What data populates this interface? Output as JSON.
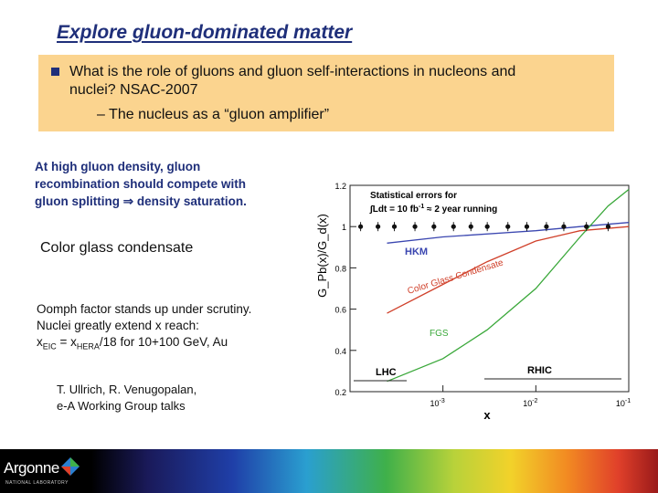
{
  "title": "Explore gluon-dominated matter",
  "bullet": {
    "line1": "What is the role of gluons and gluon self-interactions in nucleons and",
    "line2": "nuclei?  NSAC-2007",
    "sub": "–  The nucleus as a “gluon amplifier”"
  },
  "lead": {
    "line1": "At high gluon density, gluon",
    "line2": "recombination should compete with",
    "line3_a": "gluon splitting",
    "line3_b": "density saturation."
  },
  "cgc": "Color glass condensate",
  "oomph": {
    "line1": "Oomph factor stands up under scrutiny.",
    "line2": "Nuclei greatly extend x reach:",
    "x_eic": "x",
    "x_eic_sub": "EIC",
    "eq": " = x",
    "x_hera_sub": "HERA",
    "rest": "/18  for 10+100 GeV,  Au"
  },
  "refs": {
    "line1": "T. Ullrich, R. Venugopalan,",
    "line2": "e-A Working Group talks"
  },
  "chart_data": {
    "type": "line",
    "xlabel": "x",
    "ylabel": "G_Pb(x)/G_d(x)",
    "xscale": "log",
    "xlim": [
      0.0001,
      0.1
    ],
    "ylim": [
      0.2,
      1.2
    ],
    "yticks": [
      0.2,
      0.4,
      0.6,
      0.8,
      1,
      1.2
    ],
    "ytick_labels": [
      "0.2",
      "0.4",
      "0.6",
      "0.8",
      "1",
      "1.2"
    ],
    "xtick_labels": [
      "10",
      "10",
      "10"
    ],
    "xtick_exps": [
      "-3",
      "-2",
      "-1"
    ],
    "annotations": {
      "stat_title": "Statistical errors for",
      "lumi_a": "Ldt = 10 fb",
      "lumi_exp": "-1",
      "lumi_b": " ≈ 2 year running",
      "hkm": "HKM",
      "cgc": "Color Glass Condensate",
      "fgs": "FGS",
      "lhc": "LHC",
      "rhic": "RHIC"
    },
    "series": [
      {
        "name": "HKM",
        "color": "#3a46b0",
        "x": [
          0.00025,
          0.001,
          0.01,
          0.03,
          0.1
        ],
        "y": [
          0.92,
          0.95,
          0.98,
          1.0,
          1.02
        ]
      },
      {
        "name": "Color Glass Condensate",
        "color": "#d0402a",
        "x": [
          0.00025,
          0.001,
          0.003,
          0.01,
          0.03,
          0.1
        ],
        "y": [
          0.58,
          0.72,
          0.83,
          0.93,
          0.98,
          1.0
        ]
      },
      {
        "name": "FGS",
        "color": "#3aa83a",
        "x": [
          0.00025,
          0.001,
          0.003,
          0.01,
          0.03,
          0.06,
          0.1
        ],
        "y": [
          0.25,
          0.36,
          0.5,
          0.7,
          0.95,
          1.1,
          1.18
        ]
      }
    ],
    "points": {
      "x": [
        0.00013,
        0.0002,
        0.0003,
        0.0005,
        0.0008,
        0.0013,
        0.002,
        0.003,
        0.005,
        0.008,
        0.013,
        0.02,
        0.035,
        0.06
      ],
      "y": [
        1,
        1,
        1,
        1,
        1,
        1,
        1,
        1,
        1,
        1,
        1,
        1,
        1,
        1
      ]
    },
    "grid": false
  },
  "logo": {
    "name": "Argonne",
    "sub": "NATIONAL LABORATORY"
  }
}
